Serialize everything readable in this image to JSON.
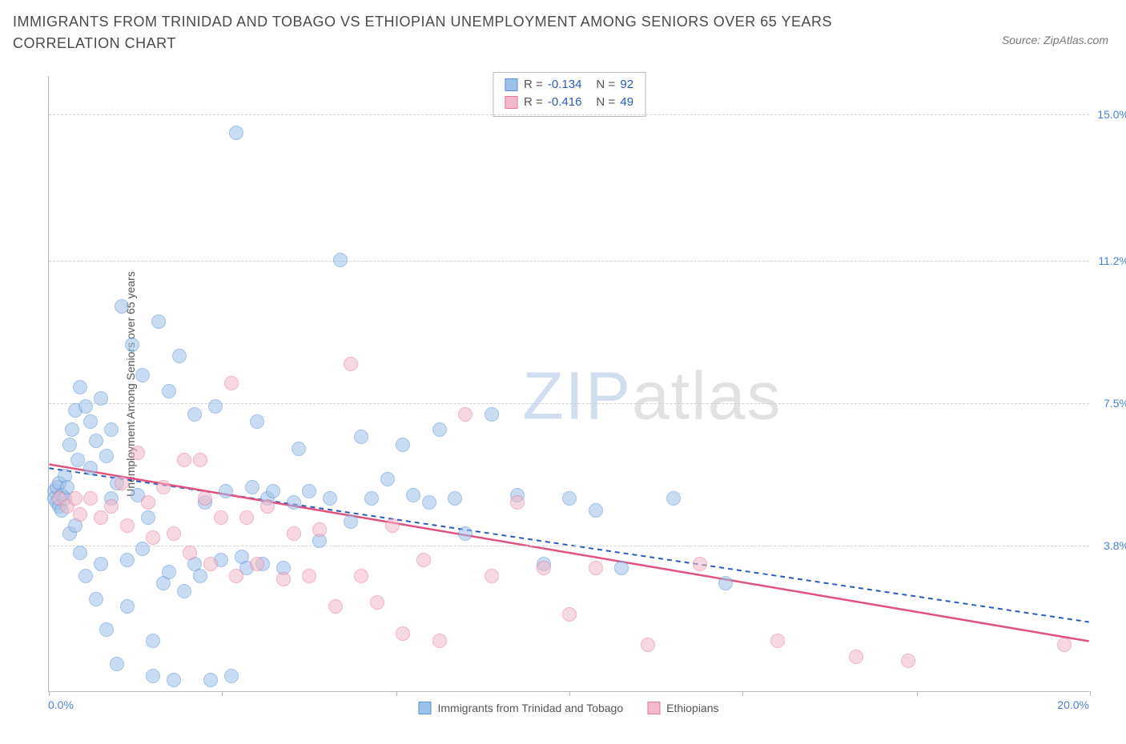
{
  "title": "IMMIGRANTS FROM TRINIDAD AND TOBAGO VS ETHIOPIAN UNEMPLOYMENT AMONG SENIORS OVER 65 YEARS CORRELATION CHART",
  "source": "Source: ZipAtlas.com",
  "y_axis_title": "Unemployment Among Seniors over 65 years",
  "watermark_a": "ZIP",
  "watermark_b": "atlas",
  "chart": {
    "type": "scatter",
    "xlim": [
      0,
      20
    ],
    "ylim": [
      0,
      16
    ],
    "x_min_label": "0.0%",
    "x_max_label": "20.0%",
    "y_ticks": [
      {
        "value": 3.8,
        "label": "3.8%"
      },
      {
        "value": 7.5,
        "label": "7.5%"
      },
      {
        "value": 11.2,
        "label": "11.2%"
      },
      {
        "value": 15.0,
        "label": "15.0%"
      }
    ],
    "x_tick_positions": [
      0,
      3.33,
      6.67,
      10,
      13.33,
      16.67,
      20
    ],
    "gridline_color": "#d0d0d0",
    "axis_color": "#b8b8b8",
    "background_color": "#ffffff",
    "marker_radius": 9,
    "marker_opacity": 0.55
  },
  "series": [
    {
      "name": "Immigrants from Trinidad and Tobago",
      "fill_color": "#9dc1ea",
      "stroke_color": "#5a8fd0",
      "R": "-0.134",
      "N": "92",
      "trend": {
        "x1": 0,
        "y1": 5.8,
        "x2": 20,
        "y2": 1.8,
        "color": "#2a5bb8",
        "dash": "6,5",
        "width": 2
      },
      "points": [
        [
          0.1,
          5.2
        ],
        [
          0.1,
          5.0
        ],
        [
          0.15,
          5.3
        ],
        [
          0.15,
          4.9
        ],
        [
          0.2,
          5.4
        ],
        [
          0.2,
          4.8
        ],
        [
          0.25,
          5.1
        ],
        [
          0.25,
          4.7
        ],
        [
          0.3,
          5.6
        ],
        [
          0.3,
          5.0
        ],
        [
          0.35,
          5.3
        ],
        [
          0.4,
          6.4
        ],
        [
          0.4,
          4.1
        ],
        [
          0.45,
          6.8
        ],
        [
          0.5,
          7.3
        ],
        [
          0.5,
          4.3
        ],
        [
          0.55,
          6.0
        ],
        [
          0.6,
          7.9
        ],
        [
          0.6,
          3.6
        ],
        [
          0.7,
          7.4
        ],
        [
          0.7,
          3.0
        ],
        [
          0.8,
          7.0
        ],
        [
          0.8,
          5.8
        ],
        [
          0.9,
          6.5
        ],
        [
          0.9,
          2.4
        ],
        [
          1.0,
          7.6
        ],
        [
          1.0,
          3.3
        ],
        [
          1.1,
          6.1
        ],
        [
          1.1,
          1.6
        ],
        [
          1.2,
          6.8
        ],
        [
          1.2,
          5.0
        ],
        [
          1.3,
          5.4
        ],
        [
          1.3,
          0.7
        ],
        [
          1.4,
          10.0
        ],
        [
          1.5,
          3.4
        ],
        [
          1.5,
          2.2
        ],
        [
          1.6,
          9.0
        ],
        [
          1.7,
          5.1
        ],
        [
          1.8,
          8.2
        ],
        [
          1.8,
          3.7
        ],
        [
          1.9,
          4.5
        ],
        [
          2.0,
          1.3
        ],
        [
          2.0,
          0.4
        ],
        [
          2.1,
          9.6
        ],
        [
          2.2,
          2.8
        ],
        [
          2.3,
          7.8
        ],
        [
          2.3,
          3.1
        ],
        [
          2.4,
          0.3
        ],
        [
          2.5,
          8.7
        ],
        [
          2.6,
          2.6
        ],
        [
          2.8,
          7.2
        ],
        [
          2.8,
          3.3
        ],
        [
          2.9,
          3.0
        ],
        [
          3.0,
          4.9
        ],
        [
          3.1,
          0.3
        ],
        [
          3.2,
          7.4
        ],
        [
          3.3,
          3.4
        ],
        [
          3.4,
          5.2
        ],
        [
          3.5,
          0.4
        ],
        [
          3.6,
          14.5
        ],
        [
          3.7,
          3.5
        ],
        [
          3.8,
          3.2
        ],
        [
          3.9,
          5.3
        ],
        [
          4.0,
          7.0
        ],
        [
          4.1,
          3.3
        ],
        [
          4.2,
          5.0
        ],
        [
          4.3,
          5.2
        ],
        [
          4.5,
          3.2
        ],
        [
          4.7,
          4.9
        ],
        [
          4.8,
          6.3
        ],
        [
          5.0,
          5.2
        ],
        [
          5.2,
          3.9
        ],
        [
          5.4,
          5.0
        ],
        [
          5.6,
          11.2
        ],
        [
          5.8,
          4.4
        ],
        [
          6.0,
          6.6
        ],
        [
          6.2,
          5.0
        ],
        [
          6.5,
          5.5
        ],
        [
          6.8,
          6.4
        ],
        [
          7.0,
          5.1
        ],
        [
          7.3,
          4.9
        ],
        [
          7.5,
          6.8
        ],
        [
          7.8,
          5.0
        ],
        [
          8.0,
          4.1
        ],
        [
          8.5,
          7.2
        ],
        [
          9.0,
          5.1
        ],
        [
          9.5,
          3.3
        ],
        [
          10.0,
          5.0
        ],
        [
          10.5,
          4.7
        ],
        [
          11.0,
          3.2
        ],
        [
          12.0,
          5.0
        ],
        [
          13.0,
          2.8
        ]
      ]
    },
    {
      "name": "Ethiopians",
      "fill_color": "#f4b9c8",
      "stroke_color": "#e178a0",
      "R": "-0.416",
      "N": "49",
      "trend": {
        "x1": 0,
        "y1": 5.9,
        "x2": 20,
        "y2": 1.3,
        "color": "#e0517d",
        "dash": "none",
        "width": 2.5
      },
      "points": [
        [
          0.2,
          5.0
        ],
        [
          0.35,
          4.8
        ],
        [
          0.5,
          5.0
        ],
        [
          0.6,
          4.6
        ],
        [
          0.8,
          5.0
        ],
        [
          1.0,
          4.5
        ],
        [
          1.2,
          4.8
        ],
        [
          1.4,
          5.4
        ],
        [
          1.5,
          4.3
        ],
        [
          1.7,
          6.2
        ],
        [
          1.9,
          4.9
        ],
        [
          2.0,
          4.0
        ],
        [
          2.2,
          5.3
        ],
        [
          2.4,
          4.1
        ],
        [
          2.6,
          6.0
        ],
        [
          2.7,
          3.6
        ],
        [
          2.9,
          6.0
        ],
        [
          3.0,
          5.0
        ],
        [
          3.1,
          3.3
        ],
        [
          3.3,
          4.5
        ],
        [
          3.5,
          8.0
        ],
        [
          3.6,
          3.0
        ],
        [
          3.8,
          4.5
        ],
        [
          4.0,
          3.3
        ],
        [
          4.2,
          4.8
        ],
        [
          4.5,
          2.9
        ],
        [
          4.7,
          4.1
        ],
        [
          5.0,
          3.0
        ],
        [
          5.2,
          4.2
        ],
        [
          5.5,
          2.2
        ],
        [
          5.8,
          8.5
        ],
        [
          6.0,
          3.0
        ],
        [
          6.3,
          2.3
        ],
        [
          6.6,
          4.3
        ],
        [
          6.8,
          1.5
        ],
        [
          7.2,
          3.4
        ],
        [
          7.5,
          1.3
        ],
        [
          8.0,
          7.2
        ],
        [
          8.5,
          3.0
        ],
        [
          9.0,
          4.9
        ],
        [
          9.5,
          3.2
        ],
        [
          10.0,
          2.0
        ],
        [
          10.5,
          3.2
        ],
        [
          11.5,
          1.2
        ],
        [
          12.5,
          3.3
        ],
        [
          14.0,
          1.3
        ],
        [
          15.5,
          0.9
        ],
        [
          16.5,
          0.8
        ],
        [
          19.5,
          1.2
        ]
      ]
    }
  ],
  "legend": {
    "series1_label": "Immigrants from Trinidad and Tobago",
    "series2_label": "Ethiopians"
  },
  "stats_box": {
    "r_prefix": "R = ",
    "n_prefix": "N = "
  }
}
